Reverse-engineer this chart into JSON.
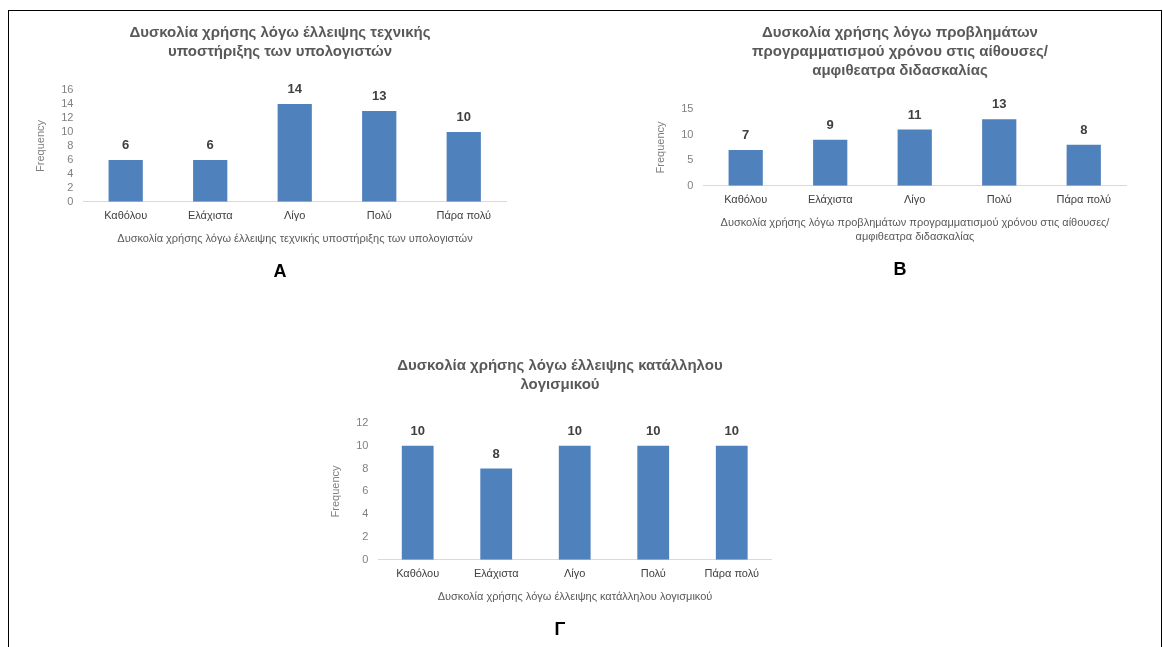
{
  "chart_data": [
    {
      "type": "bar",
      "title": "Δυσκολία χρήσης λόγω έλλειψης τεχνικής υποστήριξης των υπολογιστών",
      "xlabel": "Δυσκολία χρήσης λόγω έλλειψης τεχνικής υποστήριξης των υπολογιστών",
      "ylabel": "Frequency",
      "categories": [
        "Καθόλου",
        "Ελάχιστα",
        "Λίγο",
        "Πολύ",
        "Πάρα πολύ"
      ],
      "values": [
        6,
        6,
        14,
        13,
        10
      ],
      "color": "#4f81bd",
      "ylim": [
        0,
        16
      ],
      "yticks": [
        0,
        2,
        4,
        6,
        8,
        10,
        12,
        14,
        16
      ],
      "grid": false,
      "legend": false,
      "data_labels": true,
      "annotations": [
        "A"
      ]
    },
    {
      "type": "bar",
      "title": "Δυσκολία χρήσης λόγω προβλημάτων προγραμματισμού χρόνου στις αίθουσες/αμφιθεατρα διδασκαλίας",
      "xlabel": "Δυσκολία χρήσης λόγω προβλημάτων προγραμματισμού χρόνου στις αίθουσες/αμφιθεατρα διδασκαλίας",
      "ylabel": "Frequency",
      "categories": [
        "Καθόλου",
        "Ελάχιστα",
        "Λίγο",
        "Πολύ",
        "Πάρα πολύ"
      ],
      "values": [
        7,
        9,
        11,
        13,
        8
      ],
      "color": "#4f81bd",
      "ylim": [
        0,
        15
      ],
      "yticks": [
        0,
        5,
        10,
        15
      ],
      "grid": false,
      "legend": false,
      "data_labels": true,
      "annotations": [
        "B"
      ]
    },
    {
      "type": "bar",
      "title": "Δυσκολία χρήσης λόγω έλλειψης κατάλληλου λογισμικού",
      "xlabel": "Δυσκολία χρήσης λόγω έλλειψης κατάλληλου λογισμικού",
      "ylabel": "Frequency",
      "categories": [
        "Καθόλου",
        "Ελάχιστα",
        "Λίγο",
        "Πολύ",
        "Πάρα πολύ"
      ],
      "values": [
        10,
        8,
        10,
        10,
        10
      ],
      "color": "#4f81bd",
      "ylim": [
        0,
        12
      ],
      "yticks": [
        0,
        2,
        4,
        6,
        8,
        10,
        12
      ],
      "grid": false,
      "legend": false,
      "data_labels": true,
      "annotations": [
        "Γ"
      ]
    }
  ]
}
